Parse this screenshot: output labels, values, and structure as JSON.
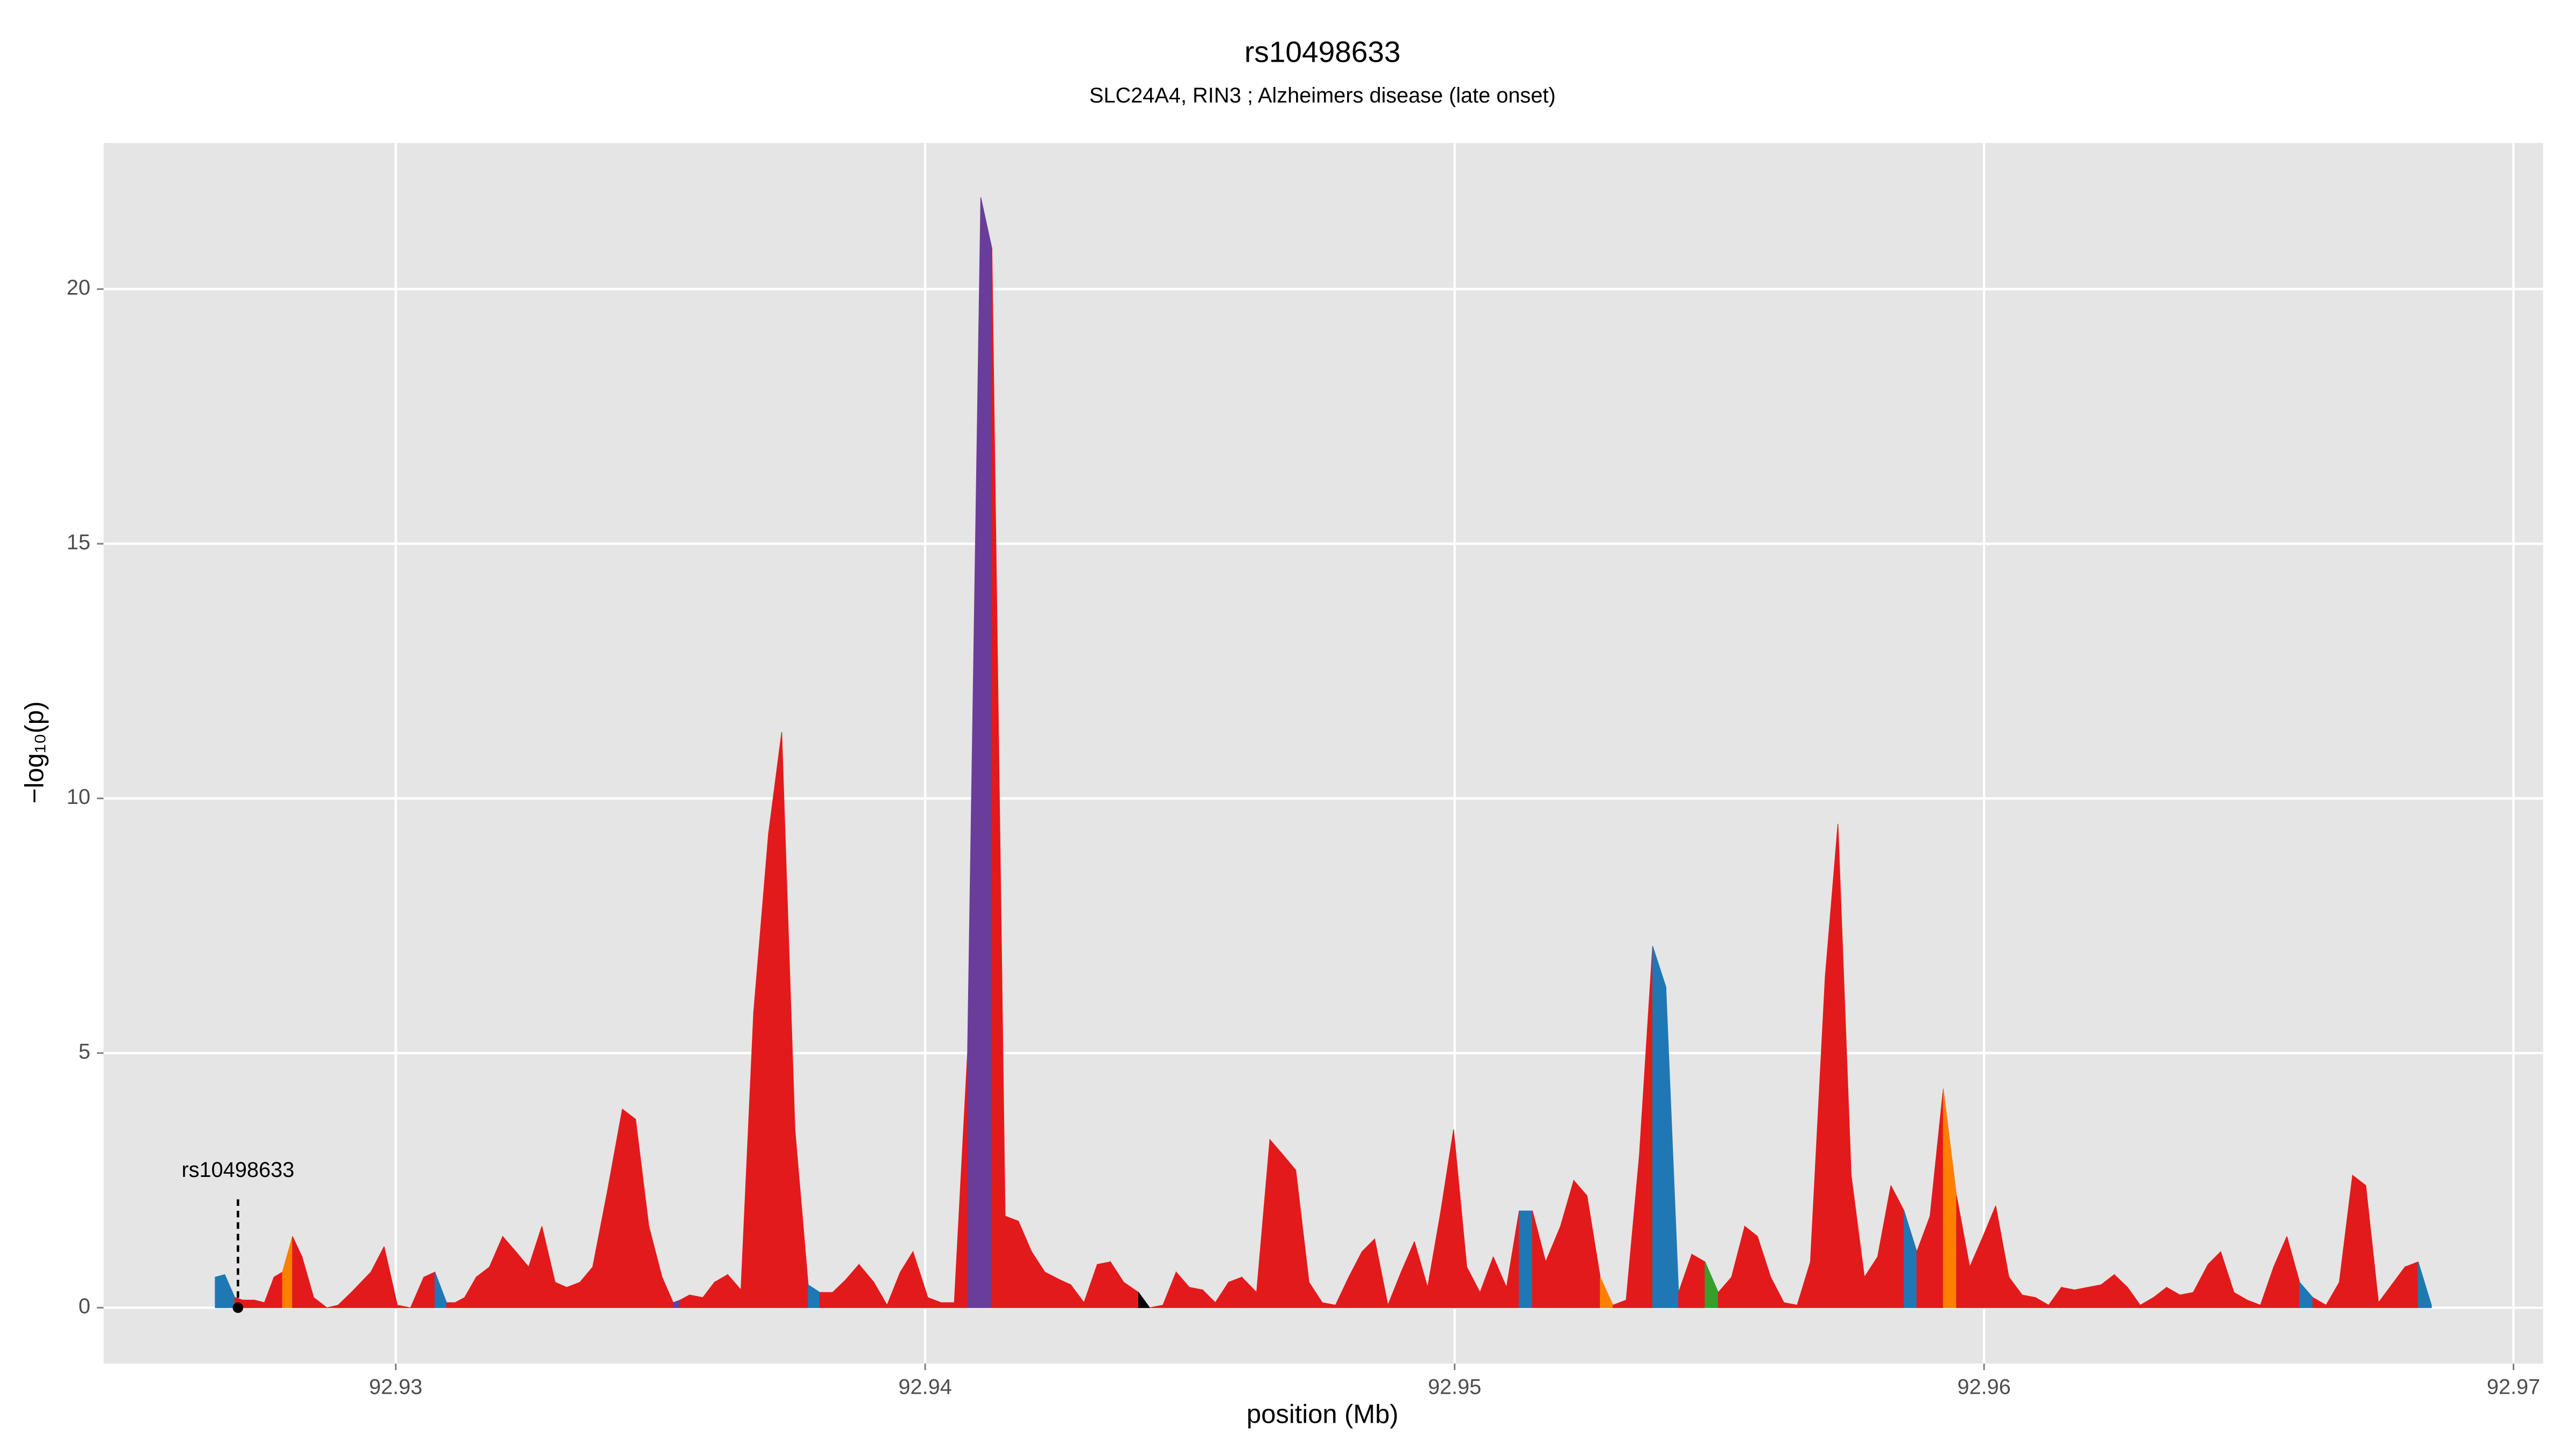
{
  "chart_data": {
    "type": "area",
    "title": "rs10498633",
    "subtitle": "SLC24A4, RIN3 ; Alzheimers disease (late onset)",
    "x_label": "position (Mb)",
    "y_label": "−log₁₀(p)",
    "x": [
      92.92659,
      92.92677,
      92.92696,
      92.92711,
      92.92733,
      92.92752,
      92.9277,
      92.92786,
      92.92805,
      92.92823,
      92.92845,
      92.9287,
      92.92891,
      92.92916,
      92.92953,
      92.92978,
      92.93003,
      92.93028,
      92.93053,
      92.93074,
      92.93096,
      92.93112,
      92.9313,
      92.93152,
      92.93177,
      92.93202,
      92.93227,
      92.93251,
      92.93276,
      92.93301,
      92.93323,
      92.93348,
      92.93372,
      92.934,
      92.93428,
      92.93453,
      92.93478,
      92.93503,
      92.93524,
      92.93537,
      92.93555,
      92.9358,
      92.93602,
      92.93627,
      92.93652,
      92.93676,
      92.93704,
      92.93729,
      92.93754,
      92.93779,
      92.93801,
      92.93825,
      92.9385,
      92.93875,
      92.93903,
      92.93928,
      92.93953,
      92.93977,
      92.94005,
      92.9403,
      92.94055,
      92.9408,
      92.94105,
      92.94126,
      92.94151,
      92.94176,
      92.94201,
      92.94226,
      92.94254,
      92.94275,
      92.943,
      92.94325,
      92.9435,
      92.94375,
      92.94403,
      92.94424,
      92.94449,
      92.94474,
      92.94499,
      92.94524,
      92.94548,
      92.94573,
      92.94598,
      92.94626,
      92.94651,
      92.94676,
      92.947,
      92.94725,
      92.9475,
      92.94775,
      92.948,
      92.94825,
      92.94849,
      92.94874,
      92.94899,
      92.94924,
      92.94949,
      92.94974,
      92.94998,
      92.95023,
      92.95048,
      92.95073,
      92.95098,
      92.95122,
      92.95147,
      92.95172,
      92.952,
      92.95225,
      92.9525,
      92.95275,
      92.95299,
      92.95324,
      92.95349,
      92.95374,
      92.95399,
      92.95423,
      92.95448,
      92.95473,
      92.95498,
      92.95523,
      92.95548,
      92.95572,
      92.95597,
      92.95622,
      92.95647,
      92.95672,
      92.957,
      92.95724,
      92.95749,
      92.95774,
      92.95799,
      92.95824,
      92.95849,
      92.95873,
      92.95898,
      92.95923,
      92.95948,
      92.95973,
      92.95998,
      92.96022,
      92.96047,
      92.96072,
      92.96097,
      92.96122,
      92.96146,
      92.96171,
      92.96196,
      92.96221,
      92.96246,
      92.96271,
      92.96295,
      92.9632,
      92.96345,
      92.9637,
      92.96395,
      92.96423,
      92.96447,
      92.96472,
      92.96497,
      92.96522,
      92.96547,
      92.96572,
      92.96596,
      92.96621,
      92.96646,
      92.96671,
      92.96696,
      92.96721,
      92.96745,
      92.9677,
      92.96795,
      92.9682,
      92.96845
    ],
    "values": [
      0.6,
      0.65,
      0.2,
      0.15,
      0.15,
      0.1,
      0.6,
      0.7,
      1.4,
      1.0,
      0.2,
      0.0,
      0.05,
      0.3,
      0.7,
      1.2,
      0.05,
      0.0,
      0.6,
      0.7,
      0.1,
      0.1,
      0.2,
      0.6,
      0.8,
      1.4,
      1.1,
      0.8,
      1.6,
      0.5,
      0.4,
      0.5,
      0.8,
      2.3,
      3.9,
      3.7,
      1.6,
      0.6,
      0.1,
      0.15,
      0.25,
      0.2,
      0.5,
      0.65,
      0.35,
      5.8,
      9.3,
      11.3,
      3.5,
      0.45,
      0.3,
      0.3,
      0.55,
      0.85,
      0.5,
      0.05,
      0.7,
      1.1,
      0.2,
      0.1,
      0.1,
      5.0,
      21.8,
      20.8,
      1.8,
      1.7,
      1.1,
      0.7,
      0.55,
      0.45,
      0.1,
      0.85,
      0.9,
      0.5,
      0.3,
      0.0,
      0.05,
      0.7,
      0.4,
      0.35,
      0.1,
      0.5,
      0.6,
      0.3,
      3.3,
      3.0,
      2.7,
      0.5,
      0.1,
      0.05,
      0.6,
      1.1,
      1.35,
      0.05,
      0.7,
      1.3,
      0.4,
      1.9,
      3.5,
      0.8,
      0.3,
      1.0,
      0.4,
      1.9,
      1.9,
      0.9,
      1.6,
      2.5,
      2.2,
      0.6,
      0.05,
      0.15,
      3.0,
      7.1,
      6.3,
      0.3,
      1.05,
      0.9,
      0.3,
      0.6,
      1.6,
      1.4,
      0.6,
      0.1,
      0.05,
      0.9,
      6.5,
      9.5,
      2.6,
      0.6,
      1.0,
      2.4,
      1.9,
      1.1,
      1.8,
      4.3,
      2.2,
      0.8,
      1.4,
      2.0,
      0.6,
      0.25,
      0.2,
      0.05,
      0.4,
      0.35,
      0.4,
      0.45,
      0.65,
      0.4,
      0.05,
      0.2,
      0.4,
      0.25,
      0.3,
      0.85,
      1.1,
      0.3,
      0.15,
      0.05,
      0.8,
      1.4,
      0.5,
      0.2,
      0.05,
      0.5,
      2.6,
      2.4,
      0.1,
      0.45,
      0.8,
      0.9,
      0.05
    ],
    "colors": [
      "#1f78b4",
      "#1f78b4",
      "#e31a1c",
      "#e31a1c",
      "#e31a1c",
      "#e31a1c",
      "#e31a1c",
      "#ff7f00",
      "#e31a1c",
      "#e31a1c",
      "#e31a1c",
      "#e31a1c",
      "#e31a1c",
      "#e31a1c",
      "#e31a1c",
      "#e31a1c",
      "#e31a1c",
      "#e31a1c",
      "#e31a1c",
      "#1f78b4",
      "#e31a1c",
      "#e31a1c",
      "#e31a1c",
      "#e31a1c",
      "#e31a1c",
      "#e31a1c",
      "#e31a1c",
      "#e31a1c",
      "#e31a1c",
      "#e31a1c",
      "#e31a1c",
      "#e31a1c",
      "#e31a1c",
      "#e31a1c",
      "#e31a1c",
      "#e31a1c",
      "#e31a1c",
      "#e31a1c",
      "#6a3d9a",
      "#e31a1c",
      "#e31a1c",
      "#e31a1c",
      "#e31a1c",
      "#e31a1c",
      "#e31a1c",
      "#e31a1c",
      "#e31a1c",
      "#e31a1c",
      "#e31a1c",
      "#1f78b4",
      "#e31a1c",
      "#e31a1c",
      "#e31a1c",
      "#e31a1c",
      "#e31a1c",
      "#e31a1c",
      "#e31a1c",
      "#e31a1c",
      "#e31a1c",
      "#e31a1c",
      "#e31a1c",
      "#6a3d9a",
      "#6a3d9a",
      "#e31a1c",
      "#e31a1c",
      "#e31a1c",
      "#e31a1c",
      "#e31a1c",
      "#e31a1c",
      "#e31a1c",
      "#e31a1c",
      "#e31a1c",
      "#e31a1c",
      "#e31a1c",
      "#000000",
      "#e31a1c",
      "#e31a1c",
      "#e31a1c",
      "#e31a1c",
      "#e31a1c",
      "#e31a1c",
      "#e31a1c",
      "#e31a1c",
      "#e31a1c",
      "#e31a1c",
      "#e31a1c",
      "#e31a1c",
      "#e31a1c",
      "#e31a1c",
      "#e31a1c",
      "#e31a1c",
      "#e31a1c",
      "#e31a1c",
      "#e31a1c",
      "#e31a1c",
      "#e31a1c",
      "#e31a1c",
      "#e31a1c",
      "#e31a1c",
      "#e31a1c",
      "#e31a1c",
      "#e31a1c",
      "#e31a1c",
      "#1f78b4",
      "#e31a1c",
      "#e31a1c",
      "#e31a1c",
      "#e31a1c",
      "#e31a1c",
      "#ff7f00",
      "#e31a1c",
      "#e31a1c",
      "#e31a1c",
      "#1f78b4",
      "#1f78b4",
      "#e31a1c",
      "#e31a1c",
      "#33a02c",
      "#e31a1c",
      "#e31a1c",
      "#e31a1c",
      "#e31a1c",
      "#e31a1c",
      "#e31a1c",
      "#e31a1c",
      "#e31a1c",
      "#e31a1c",
      "#e31a1c",
      "#e31a1c",
      "#e31a1c",
      "#e31a1c",
      "#e31a1c",
      "#1f78b4",
      "#e31a1c",
      "#e31a1c",
      "#ff7f00",
      "#e31a1c",
      "#e31a1c",
      "#e31a1c",
      "#e31a1c",
      "#e31a1c",
      "#e31a1c",
      "#e31a1c",
      "#e31a1c",
      "#e31a1c",
      "#e31a1c",
      "#e31a1c",
      "#e31a1c",
      "#e31a1c",
      "#e31a1c",
      "#e31a1c",
      "#e31a1c",
      "#e31a1c",
      "#e31a1c",
      "#e31a1c",
      "#e31a1c",
      "#e31a1c",
      "#e31a1c",
      "#e31a1c",
      "#e31a1c",
      "#e31a1c",
      "#e31a1c",
      "#1f78b4",
      "#e31a1c",
      "#e31a1c",
      "#e31a1c",
      "#e31a1c",
      "#e31a1c",
      "#e31a1c",
      "#e31a1c",
      "#e31a1c",
      "#1f78b4",
      "#e31a1c"
    ],
    "annotation": {
      "text": "rs10498633",
      "x": 92.92702,
      "y": 0
    },
    "xlim": [
      92.92448,
      92.97056
    ],
    "ylim": [
      -1.097,
      22.87
    ],
    "xticks": [
      92.93,
      92.94,
      92.95,
      92.96,
      92.97
    ],
    "yticks": [
      0,
      5,
      10,
      15,
      20
    ],
    "grid": true
  }
}
